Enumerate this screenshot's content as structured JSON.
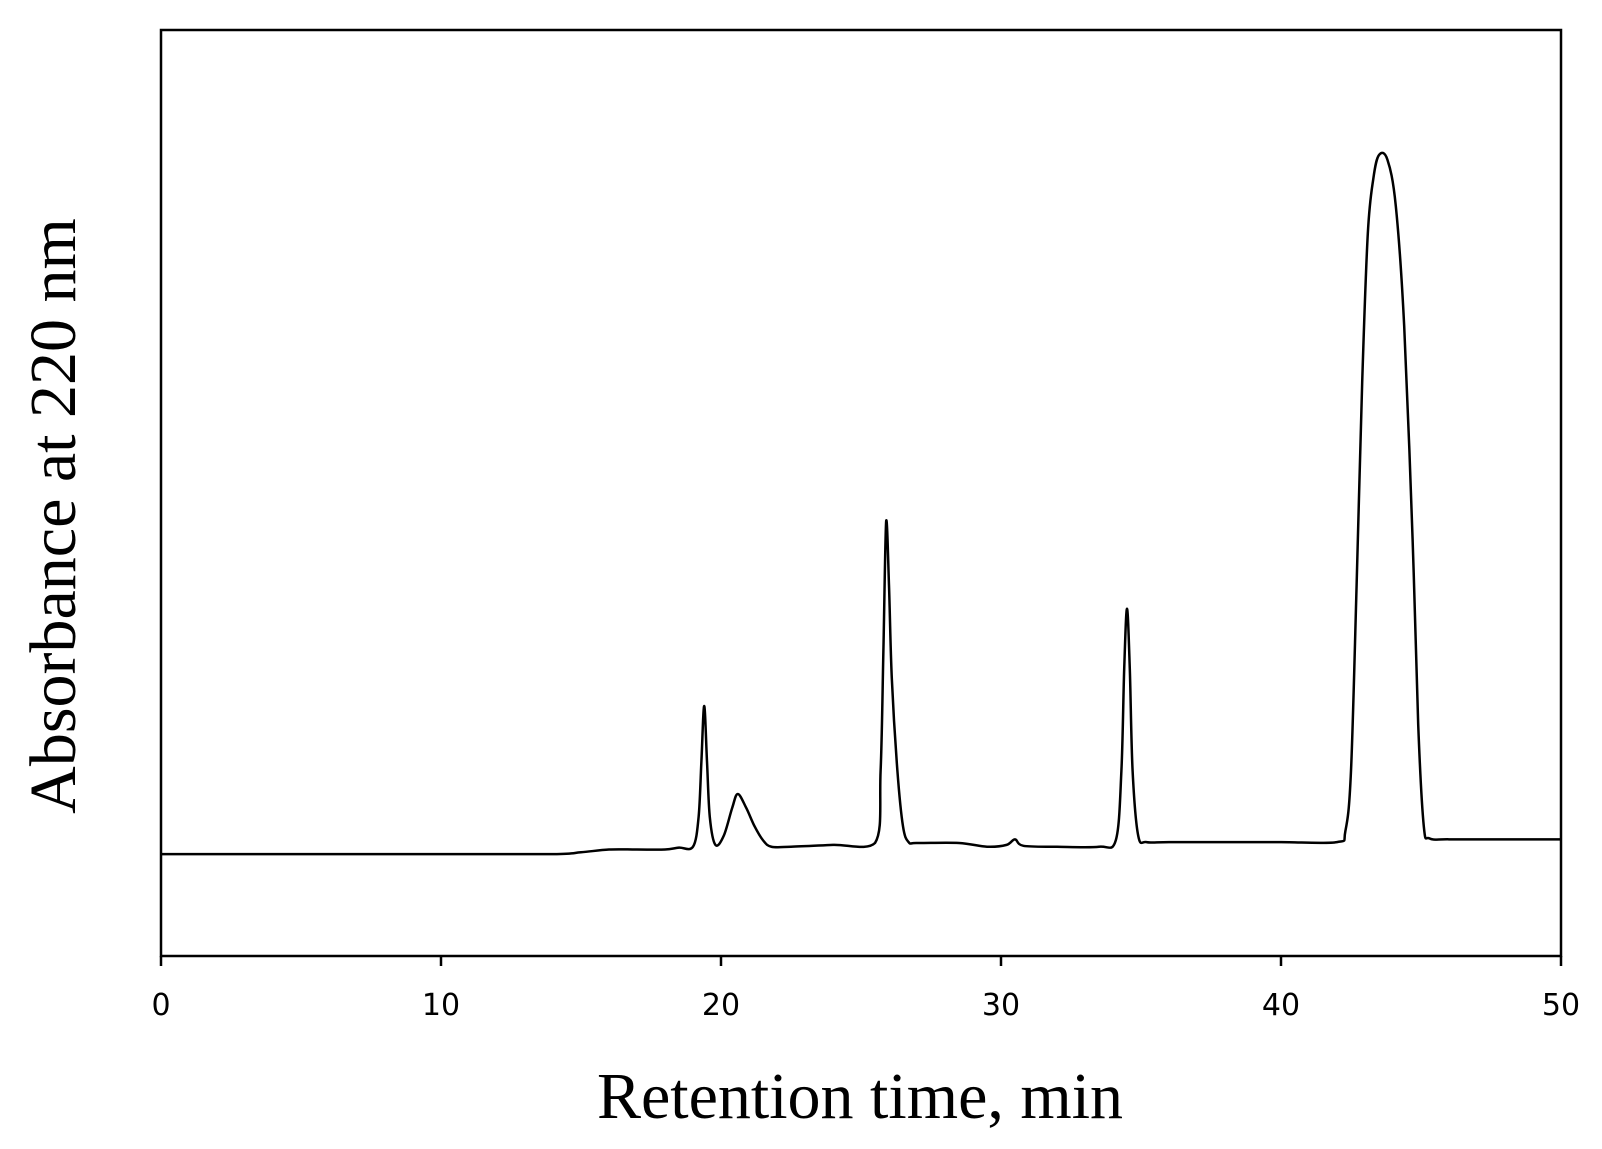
{
  "chart_data": {
    "type": "line",
    "title": "",
    "xlabel": "Retention time, min",
    "ylabel": "Absorbance at 220 nm",
    "xlim": [
      0,
      50
    ],
    "ylim": [
      0,
      1.0
    ],
    "x_ticks": [
      "0",
      "10",
      "20",
      "30",
      "40",
      "50"
    ],
    "y_ticks": [],
    "grid": false,
    "legend": "none",
    "line_color": "#000000",
    "series": [
      {
        "values": [
          [
            0,
            0.11
          ],
          [
            5,
            0.11
          ],
          [
            10,
            0.11
          ],
          [
            14,
            0.11
          ],
          [
            15,
            0.112
          ],
          [
            16,
            0.115
          ],
          [
            17,
            0.115
          ],
          [
            18,
            0.115
          ],
          [
            18.5,
            0.117
          ],
          [
            19.0,
            0.118
          ],
          [
            19.2,
            0.15
          ],
          [
            19.3,
            0.21
          ],
          [
            19.4,
            0.27
          ],
          [
            19.5,
            0.21
          ],
          [
            19.6,
            0.15
          ],
          [
            19.8,
            0.12
          ],
          [
            20.1,
            0.13
          ],
          [
            20.4,
            0.16
          ],
          [
            20.6,
            0.175
          ],
          [
            20.9,
            0.16
          ],
          [
            21.2,
            0.14
          ],
          [
            21.5,
            0.125
          ],
          [
            21.8,
            0.118
          ],
          [
            22.5,
            0.118
          ],
          [
            24,
            0.12
          ],
          [
            25.5,
            0.122
          ],
          [
            25.7,
            0.2
          ],
          [
            25.8,
            0.33
          ],
          [
            25.9,
            0.47
          ],
          [
            26.0,
            0.4
          ],
          [
            26.1,
            0.3
          ],
          [
            26.3,
            0.2
          ],
          [
            26.5,
            0.14
          ],
          [
            26.7,
            0.123
          ],
          [
            27,
            0.122
          ],
          [
            28.5,
            0.122
          ],
          [
            29.5,
            0.118
          ],
          [
            30.2,
            0.12
          ],
          [
            30.5,
            0.126
          ],
          [
            30.8,
            0.119
          ],
          [
            32,
            0.118
          ],
          [
            33.5,
            0.118
          ],
          [
            34.1,
            0.125
          ],
          [
            34.3,
            0.2
          ],
          [
            34.4,
            0.31
          ],
          [
            34.5,
            0.375
          ],
          [
            34.6,
            0.31
          ],
          [
            34.7,
            0.2
          ],
          [
            34.9,
            0.13
          ],
          [
            35.2,
            0.123
          ],
          [
            36,
            0.123
          ],
          [
            38,
            0.123
          ],
          [
            40,
            0.123
          ],
          [
            42.0,
            0.123
          ],
          [
            42.3,
            0.135
          ],
          [
            42.5,
            0.2
          ],
          [
            42.7,
            0.4
          ],
          [
            42.9,
            0.62
          ],
          [
            43.1,
            0.78
          ],
          [
            43.3,
            0.84
          ],
          [
            43.5,
            0.865
          ],
          [
            43.8,
            0.86
          ],
          [
            44.1,
            0.81
          ],
          [
            44.4,
            0.68
          ],
          [
            44.7,
            0.45
          ],
          [
            44.9,
            0.25
          ],
          [
            45.1,
            0.14
          ],
          [
            45.3,
            0.127
          ],
          [
            46,
            0.126
          ],
          [
            48,
            0.126
          ],
          [
            50,
            0.126
          ]
        ]
      }
    ]
  }
}
